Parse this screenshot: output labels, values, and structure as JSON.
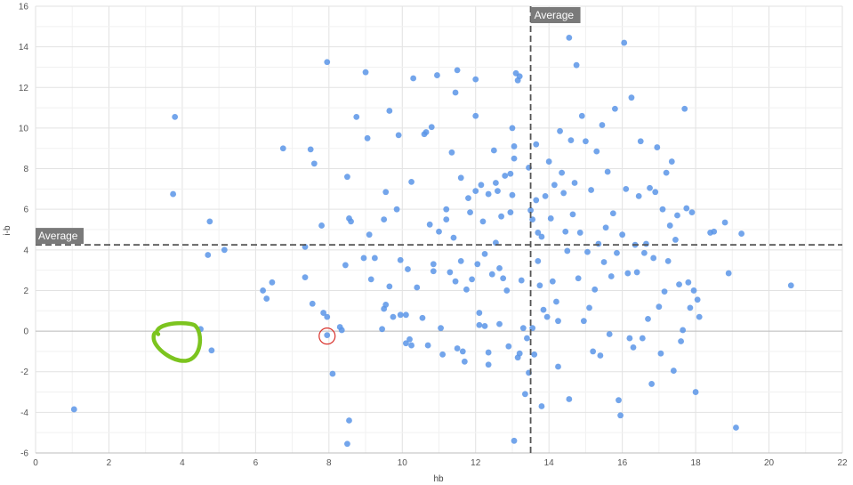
{
  "chart_data": {
    "type": "scatter",
    "xlabel": "hb",
    "ylabel": "i-b",
    "xlim": [
      0,
      22
    ],
    "ylim": [
      -6,
      16
    ],
    "x_ticks": [
      "0",
      "2",
      "4",
      "6",
      "8",
      "10",
      "12",
      "14",
      "16",
      "18",
      "20",
      "22"
    ],
    "y_ticks": [
      "-6",
      "-4",
      "-2",
      "0",
      "2",
      "4",
      "6",
      "8",
      "10",
      "12",
      "14",
      "16"
    ],
    "grid": true,
    "reference_lines": [
      {
        "axis": "x",
        "value": 13.5,
        "label": "Average"
      },
      {
        "axis": "y",
        "value": 4.25,
        "label": "Average"
      }
    ],
    "annotations": [
      {
        "type": "hand-drawn-circle",
        "color": "#7cc41f",
        "center": [
          4.0,
          -0.5
        ]
      },
      {
        "type": "circle",
        "color": "#d9312b",
        "center": [
          7.95,
          -0.2
        ]
      }
    ],
    "series": [
      {
        "color": "#5b95e8",
        "points": [
          [
            1.05,
            -3.85
          ],
          [
            3.8,
            10.55
          ],
          [
            3.75,
            6.75
          ],
          [
            4.75,
            5.4
          ],
          [
            4.7,
            3.75
          ],
          [
            5.15,
            4.0
          ],
          [
            4.5,
            0.1
          ],
          [
            4.8,
            -0.95
          ],
          [
            6.2,
            2.0
          ],
          [
            6.3,
            1.6
          ],
          [
            6.45,
            2.4
          ],
          [
            6.75,
            9.0
          ],
          [
            7.35,
            4.15
          ],
          [
            7.35,
            2.65
          ],
          [
            7.5,
            8.95
          ],
          [
            7.6,
            8.25
          ],
          [
            7.55,
            1.35
          ],
          [
            7.8,
            5.2
          ],
          [
            7.85,
            0.9
          ],
          [
            7.95,
            0.7
          ],
          [
            7.95,
            13.25
          ],
          [
            7.95,
            -0.2
          ],
          [
            8.1,
            -2.1
          ],
          [
            8.3,
            0.2
          ],
          [
            8.35,
            0.05
          ],
          [
            8.45,
            3.25
          ],
          [
            8.5,
            -5.55
          ],
          [
            8.55,
            -4.4
          ],
          [
            8.5,
            7.6
          ],
          [
            8.55,
            5.55
          ],
          [
            8.6,
            5.4
          ],
          [
            8.75,
            10.55
          ],
          [
            8.95,
            3.6
          ],
          [
            9.0,
            12.75
          ],
          [
            9.05,
            9.5
          ],
          [
            9.1,
            4.75
          ],
          [
            9.15,
            2.55
          ],
          [
            9.25,
            3.6
          ],
          [
            9.45,
            0.1
          ],
          [
            9.5,
            5.5
          ],
          [
            9.5,
            1.1
          ],
          [
            9.55,
            1.3
          ],
          [
            9.55,
            6.85
          ],
          [
            9.65,
            2.2
          ],
          [
            9.65,
            10.85
          ],
          [
            9.75,
            0.7
          ],
          [
            9.85,
            6.0
          ],
          [
            9.9,
            9.65
          ],
          [
            9.95,
            0.8
          ],
          [
            9.95,
            3.5
          ],
          [
            10.1,
            -0.6
          ],
          [
            10.1,
            0.8
          ],
          [
            10.15,
            3.05
          ],
          [
            10.2,
            -0.4
          ],
          [
            10.25,
            -0.7
          ],
          [
            10.25,
            7.35
          ],
          [
            10.3,
            12.45
          ],
          [
            10.4,
            2.15
          ],
          [
            10.55,
            0.65
          ],
          [
            10.6,
            9.7
          ],
          [
            10.65,
            9.8
          ],
          [
            10.7,
            -0.7
          ],
          [
            10.75,
            5.25
          ],
          [
            10.8,
            10.05
          ],
          [
            10.85,
            2.95
          ],
          [
            10.85,
            3.3
          ],
          [
            10.95,
            12.6
          ],
          [
            11.0,
            4.9
          ],
          [
            11.05,
            0.15
          ],
          [
            11.1,
            -1.15
          ],
          [
            11.2,
            6.0
          ],
          [
            11.2,
            5.5
          ],
          [
            11.3,
            2.9
          ],
          [
            11.35,
            8.8
          ],
          [
            11.4,
            4.6
          ],
          [
            11.45,
            2.45
          ],
          [
            11.45,
            11.75
          ],
          [
            11.5,
            12.85
          ],
          [
            11.5,
            -0.85
          ],
          [
            11.6,
            7.55
          ],
          [
            11.6,
            3.45
          ],
          [
            11.65,
            -1.0
          ],
          [
            11.7,
            -1.5
          ],
          [
            11.75,
            2.05
          ],
          [
            11.8,
            6.55
          ],
          [
            11.85,
            5.85
          ],
          [
            11.9,
            2.55
          ],
          [
            12.0,
            12.4
          ],
          [
            12.0,
            10.6
          ],
          [
            12.0,
            6.9
          ],
          [
            12.05,
            3.3
          ],
          [
            12.1,
            0.9
          ],
          [
            12.1,
            0.3
          ],
          [
            12.15,
            7.2
          ],
          [
            12.2,
            5.4
          ],
          [
            12.25,
            3.8
          ],
          [
            12.25,
            0.25
          ],
          [
            12.35,
            -1.05
          ],
          [
            12.35,
            -1.65
          ],
          [
            12.35,
            6.75
          ],
          [
            12.45,
            2.8
          ],
          [
            12.5,
            8.9
          ],
          [
            12.55,
            7.3
          ],
          [
            12.55,
            4.35
          ],
          [
            12.6,
            6.9
          ],
          [
            12.65,
            3.1
          ],
          [
            12.65,
            0.35
          ],
          [
            12.7,
            5.65
          ],
          [
            12.75,
            2.6
          ],
          [
            12.8,
            7.65
          ],
          [
            12.85,
            2.0
          ],
          [
            12.9,
            -0.75
          ],
          [
            12.95,
            5.85
          ],
          [
            12.95,
            7.75
          ],
          [
            13.0,
            6.7
          ],
          [
            13.0,
            10.0
          ],
          [
            13.05,
            9.1
          ],
          [
            13.05,
            8.5
          ],
          [
            13.05,
            -5.4
          ],
          [
            13.1,
            12.7
          ],
          [
            13.15,
            -1.3
          ],
          [
            13.15,
            12.35
          ],
          [
            13.2,
            12.55
          ],
          [
            13.2,
            -1.1
          ],
          [
            13.25,
            2.5
          ],
          [
            13.3,
            0.15
          ],
          [
            13.35,
            -3.1
          ],
          [
            13.4,
            -0.35
          ],
          [
            13.45,
            -2.05
          ],
          [
            13.45,
            8.05
          ],
          [
            13.5,
            5.95
          ],
          [
            13.55,
            5.5
          ],
          [
            13.55,
            0.15
          ],
          [
            13.6,
            -1.15
          ],
          [
            13.65,
            9.2
          ],
          [
            13.65,
            6.45
          ],
          [
            13.7,
            4.85
          ],
          [
            13.7,
            3.45
          ],
          [
            13.75,
            2.25
          ],
          [
            13.8,
            4.65
          ],
          [
            13.8,
            -3.7
          ],
          [
            13.85,
            1.05
          ],
          [
            13.9,
            6.65
          ],
          [
            13.95,
            0.7
          ],
          [
            14.0,
            8.35
          ],
          [
            14.05,
            5.55
          ],
          [
            14.1,
            2.45
          ],
          [
            14.15,
            7.2
          ],
          [
            14.2,
            1.45
          ],
          [
            14.25,
            -1.75
          ],
          [
            14.25,
            0.5
          ],
          [
            14.3,
            9.85
          ],
          [
            14.35,
            7.8
          ],
          [
            14.4,
            6.8
          ],
          [
            14.45,
            4.9
          ],
          [
            14.5,
            3.95
          ],
          [
            14.55,
            -3.35
          ],
          [
            14.55,
            14.45
          ],
          [
            14.6,
            9.4
          ],
          [
            14.65,
            5.75
          ],
          [
            14.7,
            7.3
          ],
          [
            14.75,
            13.1
          ],
          [
            14.8,
            2.6
          ],
          [
            14.85,
            4.85
          ],
          [
            14.9,
            10.6
          ],
          [
            14.95,
            0.5
          ],
          [
            15.0,
            9.35
          ],
          [
            15.05,
            3.9
          ],
          [
            15.1,
            1.15
          ],
          [
            15.15,
            6.95
          ],
          [
            15.2,
            -1.0
          ],
          [
            15.25,
            2.05
          ],
          [
            15.3,
            8.85
          ],
          [
            15.35,
            4.3
          ],
          [
            15.4,
            -1.2
          ],
          [
            15.45,
            10.15
          ],
          [
            15.5,
            3.4
          ],
          [
            15.55,
            5.1
          ],
          [
            15.6,
            7.85
          ],
          [
            15.65,
            -0.15
          ],
          [
            15.7,
            2.7
          ],
          [
            15.75,
            5.8
          ],
          [
            15.8,
            10.95
          ],
          [
            15.85,
            3.85
          ],
          [
            15.9,
            -3.4
          ],
          [
            15.95,
            -4.15
          ],
          [
            16.0,
            4.75
          ],
          [
            16.05,
            14.2
          ],
          [
            16.1,
            7.0
          ],
          [
            16.15,
            2.85
          ],
          [
            16.2,
            -0.35
          ],
          [
            16.25,
            11.5
          ],
          [
            16.3,
            -0.8
          ],
          [
            16.35,
            4.25
          ],
          [
            16.4,
            2.9
          ],
          [
            16.45,
            6.65
          ],
          [
            16.5,
            9.35
          ],
          [
            16.55,
            -0.35
          ],
          [
            16.6,
            3.85
          ],
          [
            16.65,
            4.3
          ],
          [
            16.7,
            0.6
          ],
          [
            16.75,
            7.05
          ],
          [
            16.8,
            -2.6
          ],
          [
            16.85,
            3.6
          ],
          [
            16.9,
            6.85
          ],
          [
            16.95,
            9.05
          ],
          [
            17.0,
            1.2
          ],
          [
            17.05,
            -1.1
          ],
          [
            17.1,
            6.0
          ],
          [
            17.15,
            1.95
          ],
          [
            17.2,
            7.8
          ],
          [
            17.25,
            3.45
          ],
          [
            17.3,
            5.2
          ],
          [
            17.35,
            8.35
          ],
          [
            17.4,
            -1.95
          ],
          [
            17.45,
            4.5
          ],
          [
            17.5,
            5.7
          ],
          [
            17.55,
            2.3
          ],
          [
            17.6,
            -0.5
          ],
          [
            17.65,
            0.05
          ],
          [
            17.7,
            10.95
          ],
          [
            17.75,
            6.05
          ],
          [
            17.8,
            2.4
          ],
          [
            17.85,
            1.15
          ],
          [
            17.9,
            5.85
          ],
          [
            17.95,
            2.0
          ],
          [
            18.0,
            -3.0
          ],
          [
            18.05,
            1.55
          ],
          [
            18.1,
            0.7
          ],
          [
            18.4,
            4.85
          ],
          [
            18.5,
            4.9
          ],
          [
            18.8,
            5.35
          ],
          [
            18.9,
            2.85
          ],
          [
            19.1,
            -4.75
          ],
          [
            19.25,
            4.8
          ],
          [
            20.6,
            2.25
          ]
        ]
      }
    ]
  }
}
